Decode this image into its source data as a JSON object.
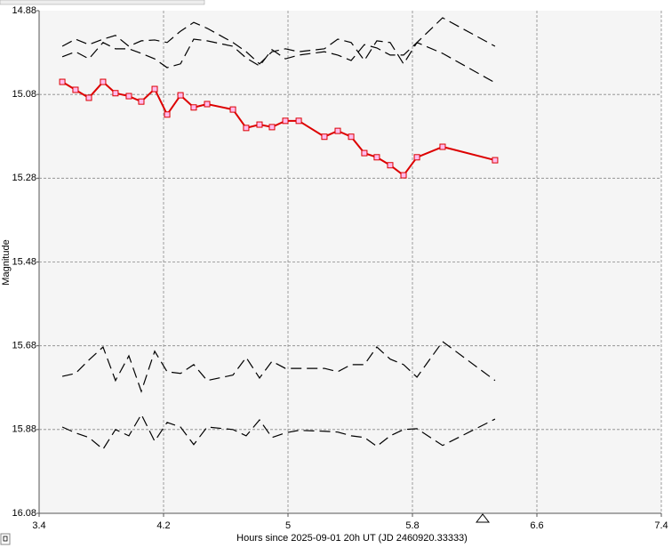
{
  "chart_data": {
    "type": "line",
    "x_label": "Hours since 2025-09-01 20h UT (JD 2460920.33333)",
    "y_label": "Magnitude",
    "x": [
      3.549,
      3.634,
      3.72,
      3.811,
      3.891,
      3.977,
      4.057,
      4.143,
      4.223,
      4.309,
      4.394,
      4.48,
      4.646,
      4.731,
      4.817,
      4.897,
      4.983,
      5.069,
      5.234,
      5.32,
      5.406,
      5.491,
      5.571,
      5.657,
      5.743,
      5.829,
      5.994,
      6.331
    ],
    "series": [
      {
        "color": "#dd0000",
        "dashed": false,
        "markers": true,
        "values": [
          15.05,
          15.069,
          15.088,
          15.05,
          15.077,
          15.084,
          15.097,
          15.067,
          15.128,
          15.082,
          15.111,
          15.103,
          15.116,
          15.16,
          15.152,
          15.158,
          15.143,
          15.143,
          15.181,
          15.167,
          15.181,
          15.22,
          15.23,
          15.249,
          15.273,
          15.23,
          15.205,
          15.237
        ]
      },
      {
        "color": "#000000",
        "dashed": true,
        "markers": false,
        "values": [
          14.965,
          14.948,
          14.961,
          14.948,
          14.939,
          14.965,
          14.952,
          14.95,
          14.956,
          14.929,
          14.908,
          14.922,
          14.956,
          14.978,
          15.007,
          14.978,
          14.971,
          14.978,
          14.971,
          14.948,
          14.956,
          14.999,
          14.952,
          14.956,
          15.007,
          14.956,
          14.897,
          14.965
        ]
      },
      {
        "color": "#000000",
        "dashed": true,
        "markers": false,
        "values": [
          14.99,
          14.978,
          14.995,
          14.956,
          14.971,
          14.971,
          14.982,
          14.995,
          15.016,
          15.007,
          14.948,
          14.952,
          14.965,
          14.993,
          15.012,
          14.973,
          14.995,
          14.986,
          14.978,
          14.986,
          14.999,
          14.961,
          14.969,
          14.986,
          14.986,
          14.956,
          14.982,
          15.052
        ]
      },
      {
        "color": "#000000",
        "dashed": true,
        "markers": false,
        "values": [
          15.753,
          15.746,
          15.714,
          15.683,
          15.763,
          15.704,
          15.789,
          15.693,
          15.742,
          15.746,
          15.725,
          15.763,
          15.75,
          15.708,
          15.757,
          15.717,
          15.734,
          15.734,
          15.734,
          15.742,
          15.725,
          15.725,
          15.683,
          15.712,
          15.725,
          15.755,
          15.67,
          15.763
        ]
      },
      {
        "color": "#000000",
        "dashed": true,
        "markers": false,
        "values": [
          15.874,
          15.888,
          15.899,
          15.927,
          15.88,
          15.895,
          15.844,
          15.908,
          15.863,
          15.874,
          15.916,
          15.874,
          15.88,
          15.895,
          15.857,
          15.899,
          15.888,
          15.882,
          15.884,
          15.886,
          15.895,
          15.899,
          15.92,
          15.895,
          15.88,
          15.878,
          15.918,
          15.855
        ]
      }
    ],
    "xlim": [
      3.4,
      7.4
    ],
    "xticks": [
      3.4,
      4.2,
      5,
      5.8,
      6.6,
      7.4
    ],
    "ylim": [
      14.88,
      16.08
    ],
    "yticks": [
      14.88,
      15.08,
      15.28,
      15.48,
      15.68,
      15.88,
      16.08
    ],
    "y_inverted": true,
    "grid": true
  }
}
